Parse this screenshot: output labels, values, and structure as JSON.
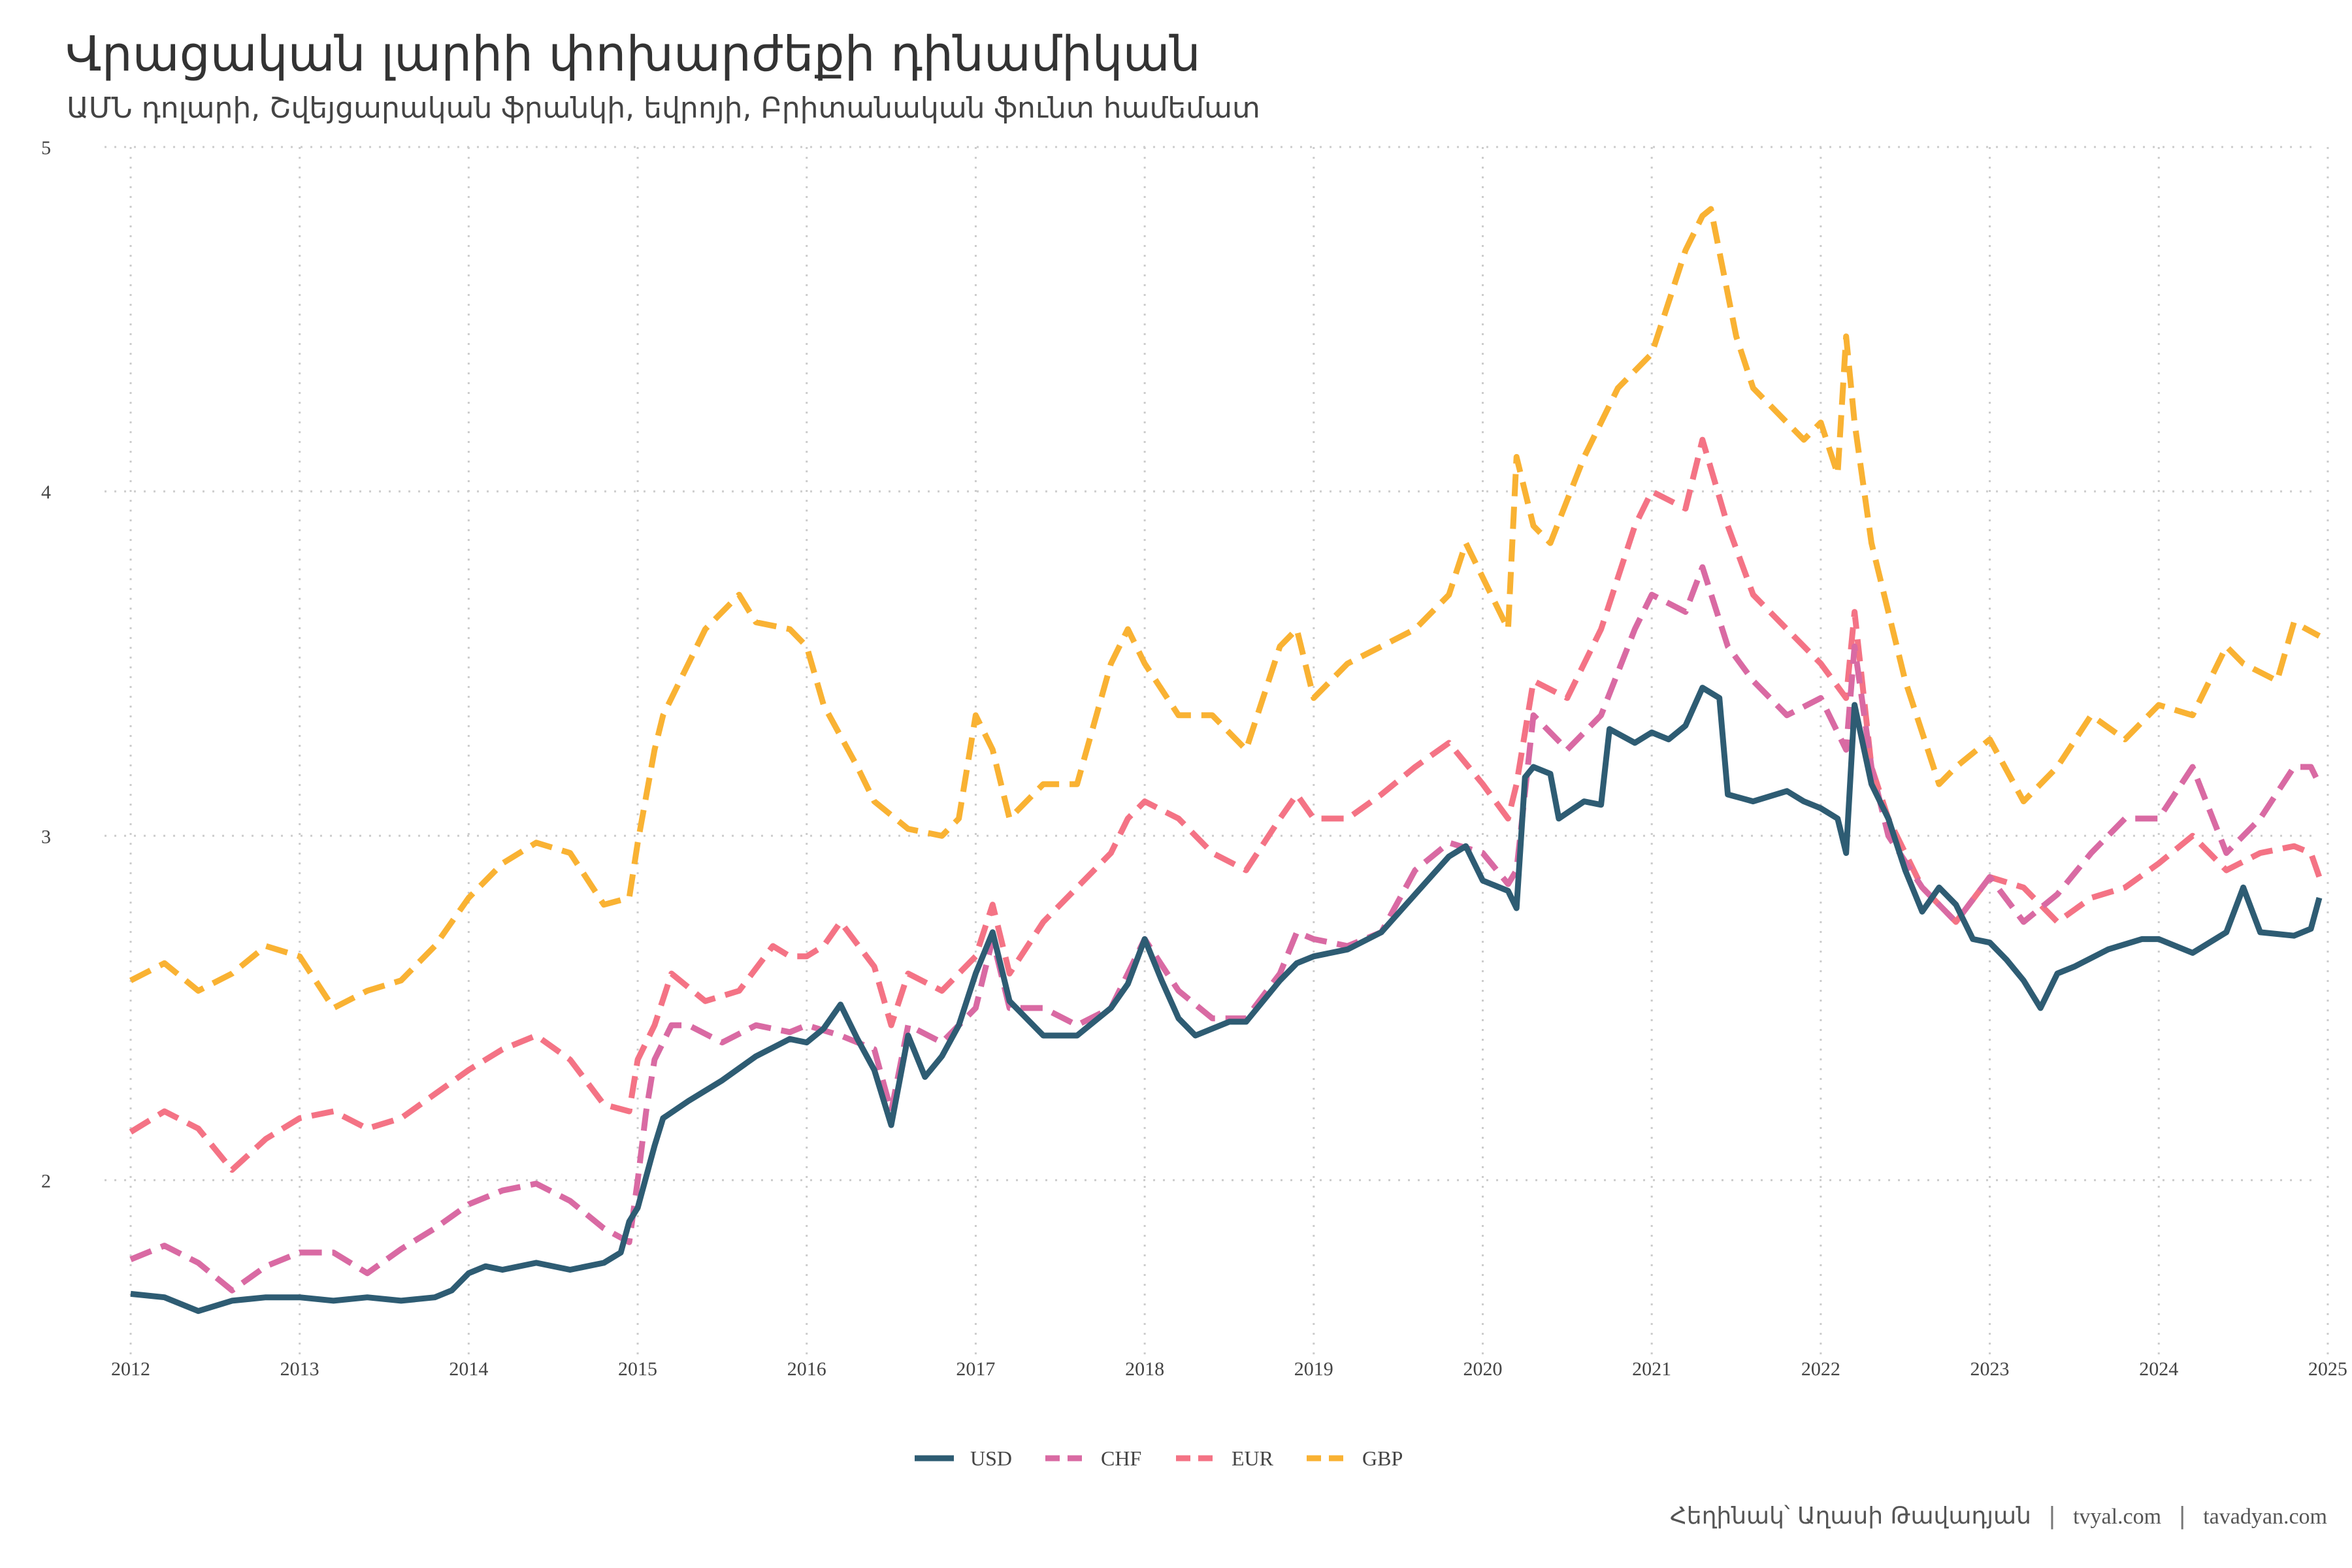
{
  "title": "Վրացական լարիի փոխարժեքի դինամիկան",
  "subtitle": "ԱՄՆ դոլարի, Շվեյցարական ֆրանկի, եվրոյի, Բրիտանական ֆունտ համեմատ",
  "caption": {
    "author": "Հեղինակ՝ Աղասի Թավադյան",
    "site1": "tvyal.com",
    "site2": "tavadyan.com",
    "separator": "|"
  },
  "chart_data": {
    "type": "line",
    "xlabel": "",
    "ylabel": "",
    "xlim": [
      2012.0,
      2024.95
    ],
    "ylim": [
      1.5,
      5.0
    ],
    "x_ticks": [
      "2012",
      "2013",
      "2014",
      "2015",
      "2016",
      "2017",
      "2018",
      "2019",
      "2020",
      "2021",
      "2022",
      "2023",
      "2024",
      "2025"
    ],
    "y_ticks": [
      "2",
      "3",
      "4",
      "5"
    ],
    "grid": true,
    "legend_position": "bottom",
    "series": [
      {
        "name": "USD",
        "color": "#2e5c73",
        "dash": "solid",
        "x": [
          2012.0,
          2012.2,
          2012.4,
          2012.6,
          2012.8,
          2013.0,
          2013.2,
          2013.4,
          2013.6,
          2013.8,
          2013.9,
          2014.0,
          2014.1,
          2014.2,
          2014.4,
          2014.6,
          2014.8,
          2014.9,
          2014.95,
          2015.0,
          2015.1,
          2015.15,
          2015.3,
          2015.5,
          2015.7,
          2015.9,
          2016.0,
          2016.1,
          2016.2,
          2016.3,
          2016.4,
          2016.5,
          2016.6,
          2016.7,
          2016.8,
          2016.9,
          2017.0,
          2017.1,
          2017.2,
          2017.4,
          2017.6,
          2017.8,
          2017.9,
          2018.0,
          2018.1,
          2018.2,
          2018.3,
          2018.5,
          2018.6,
          2018.8,
          2018.9,
          2019.0,
          2019.2,
          2019.4,
          2019.6,
          2019.8,
          2019.9,
          2020.0,
          2020.15,
          2020.2,
          2020.25,
          2020.3,
          2020.4,
          2020.45,
          2020.6,
          2020.7,
          2020.75,
          2020.9,
          2021.0,
          2021.1,
          2021.2,
          2021.3,
          2021.4,
          2021.45,
          2021.6,
          2021.8,
          2021.9,
          2022.0,
          2022.1,
          2022.15,
          2022.2,
          2022.3,
          2022.4,
          2022.5,
          2022.6,
          2022.7,
          2022.8,
          2022.9,
          2023.0,
          2023.1,
          2023.2,
          2023.3,
          2023.4,
          2023.5,
          2023.7,
          2023.9,
          2024.0,
          2024.2,
          2024.4,
          2024.5,
          2024.6,
          2024.8,
          2024.9,
          2024.95
        ],
        "values": [
          1.67,
          1.66,
          1.62,
          1.65,
          1.66,
          1.66,
          1.65,
          1.66,
          1.65,
          1.66,
          1.68,
          1.73,
          1.75,
          1.74,
          1.76,
          1.74,
          1.76,
          1.79,
          1.88,
          1.92,
          2.1,
          2.18,
          2.23,
          2.29,
          2.36,
          2.41,
          2.4,
          2.44,
          2.51,
          2.41,
          2.32,
          2.16,
          2.42,
          2.3,
          2.36,
          2.45,
          2.6,
          2.72,
          2.52,
          2.42,
          2.42,
          2.5,
          2.57,
          2.7,
          2.58,
          2.47,
          2.42,
          2.46,
          2.46,
          2.58,
          2.63,
          2.65,
          2.67,
          2.72,
          2.83,
          2.94,
          2.97,
          2.87,
          2.84,
          2.79,
          3.17,
          3.2,
          3.18,
          3.05,
          3.1,
          3.09,
          3.31,
          3.27,
          3.3,
          3.28,
          3.32,
          3.43,
          3.4,
          3.12,
          3.1,
          3.13,
          3.1,
          3.08,
          3.05,
          2.95,
          3.38,
          3.15,
          3.05,
          2.9,
          2.78,
          2.85,
          2.8,
          2.7,
          2.69,
          2.64,
          2.58,
          2.5,
          2.6,
          2.62,
          2.67,
          2.7,
          2.7,
          2.66,
          2.72,
          2.85,
          2.72,
          2.71,
          2.73,
          2.82
        ]
      },
      {
        "name": "CHF",
        "color": "#d96aa3",
        "dash": "dashed",
        "x": [
          2012.0,
          2012.2,
          2012.4,
          2012.6,
          2012.8,
          2013.0,
          2013.2,
          2013.4,
          2013.6,
          2013.8,
          2014.0,
          2014.2,
          2014.4,
          2014.6,
          2014.8,
          2014.95,
          2015.0,
          2015.05,
          2015.1,
          2015.2,
          2015.3,
          2015.5,
          2015.7,
          2015.9,
          2016.0,
          2016.2,
          2016.4,
          2016.5,
          2016.6,
          2016.8,
          2017.0,
          2017.1,
          2017.2,
          2017.4,
          2017.6,
          2017.8,
          2017.9,
          2018.0,
          2018.2,
          2018.4,
          2018.6,
          2018.8,
          2018.9,
          2019.0,
          2019.2,
          2019.4,
          2019.6,
          2019.8,
          2020.0,
          2020.15,
          2020.2,
          2020.3,
          2020.5,
          2020.7,
          2020.9,
          2021.0,
          2021.2,
          2021.3,
          2021.45,
          2021.6,
          2021.8,
          2022.0,
          2022.15,
          2022.2,
          2022.3,
          2022.4,
          2022.6,
          2022.8,
          2023.0,
          2023.2,
          2023.4,
          2023.6,
          2023.8,
          2024.0,
          2024.2,
          2024.4,
          2024.6,
          2024.8,
          2024.9,
          2024.95
        ],
        "values": [
          1.77,
          1.81,
          1.76,
          1.68,
          1.75,
          1.79,
          1.79,
          1.73,
          1.8,
          1.86,
          1.93,
          1.97,
          1.99,
          1.94,
          1.86,
          1.82,
          2.0,
          2.2,
          2.35,
          2.45,
          2.45,
          2.4,
          2.45,
          2.43,
          2.45,
          2.42,
          2.38,
          2.2,
          2.45,
          2.4,
          2.5,
          2.7,
          2.5,
          2.5,
          2.45,
          2.5,
          2.6,
          2.7,
          2.55,
          2.47,
          2.47,
          2.6,
          2.72,
          2.7,
          2.68,
          2.72,
          2.9,
          2.98,
          2.95,
          2.86,
          2.9,
          3.35,
          3.25,
          3.35,
          3.6,
          3.7,
          3.65,
          3.78,
          3.55,
          3.45,
          3.35,
          3.4,
          3.25,
          3.55,
          3.2,
          3.0,
          2.85,
          2.75,
          2.88,
          2.75,
          2.83,
          2.95,
          3.05,
          3.05,
          3.2,
          2.95,
          3.05,
          3.2,
          3.2,
          3.15
        ]
      },
      {
        "name": "EUR",
        "color": "#f47385",
        "dash": "dashed",
        "x": [
          2012.0,
          2012.2,
          2012.4,
          2012.6,
          2012.8,
          2013.0,
          2013.2,
          2013.4,
          2013.6,
          2013.8,
          2014.0,
          2014.2,
          2014.4,
          2014.6,
          2014.8,
          2014.95,
          2015.0,
          2015.1,
          2015.2,
          2015.4,
          2015.6,
          2015.8,
          2015.9,
          2016.0,
          2016.1,
          2016.2,
          2016.4,
          2016.5,
          2016.6,
          2016.8,
          2017.0,
          2017.1,
          2017.2,
          2017.4,
          2017.6,
          2017.8,
          2017.9,
          2018.0,
          2018.2,
          2018.4,
          2018.6,
          2018.8,
          2018.9,
          2019.0,
          2019.2,
          2019.4,
          2019.6,
          2019.8,
          2020.0,
          2020.15,
          2020.2,
          2020.3,
          2020.5,
          2020.7,
          2020.9,
          2021.0,
          2021.2,
          2021.3,
          2021.45,
          2021.6,
          2021.8,
          2022.0,
          2022.15,
          2022.2,
          2022.3,
          2022.4,
          2022.6,
          2022.8,
          2023.0,
          2023.2,
          2023.4,
          2023.6,
          2023.8,
          2024.0,
          2024.2,
          2024.4,
          2024.6,
          2024.8,
          2024.9,
          2024.95
        ],
        "values": [
          2.14,
          2.2,
          2.15,
          2.03,
          2.12,
          2.18,
          2.2,
          2.15,
          2.18,
          2.25,
          2.32,
          2.38,
          2.42,
          2.35,
          2.22,
          2.2,
          2.35,
          2.45,
          2.6,
          2.52,
          2.55,
          2.68,
          2.65,
          2.65,
          2.68,
          2.75,
          2.62,
          2.45,
          2.6,
          2.55,
          2.65,
          2.8,
          2.6,
          2.75,
          2.85,
          2.95,
          3.05,
          3.1,
          3.05,
          2.95,
          2.9,
          3.05,
          3.12,
          3.05,
          3.05,
          3.12,
          3.2,
          3.27,
          3.15,
          3.05,
          3.15,
          3.45,
          3.4,
          3.6,
          3.9,
          4.0,
          3.95,
          4.15,
          3.9,
          3.7,
          3.6,
          3.5,
          3.4,
          3.65,
          3.2,
          3.05,
          2.85,
          2.75,
          2.88,
          2.85,
          2.75,
          2.82,
          2.85,
          2.92,
          3.0,
          2.9,
          2.95,
          2.97,
          2.95,
          2.88
        ]
      },
      {
        "name": "GBP",
        "color": "#f9b233",
        "dash": "dashed",
        "x": [
          2012.0,
          2012.2,
          2012.4,
          2012.6,
          2012.8,
          2013.0,
          2013.2,
          2013.4,
          2013.6,
          2013.8,
          2014.0,
          2014.2,
          2014.4,
          2014.6,
          2014.8,
          2014.95,
          2015.0,
          2015.1,
          2015.15,
          2015.3,
          2015.4,
          2015.6,
          2015.7,
          2015.9,
          2016.0,
          2016.1,
          2016.3,
          2016.4,
          2016.6,
          2016.8,
          2016.9,
          2017.0,
          2017.1,
          2017.2,
          2017.4,
          2017.6,
          2017.8,
          2017.9,
          2018.0,
          2018.2,
          2018.4,
          2018.6,
          2018.8,
          2018.9,
          2019.0,
          2019.2,
          2019.4,
          2019.6,
          2019.8,
          2019.9,
          2020.0,
          2020.15,
          2020.2,
          2020.3,
          2020.4,
          2020.6,
          2020.8,
          2021.0,
          2021.1,
          2021.2,
          2021.3,
          2021.35,
          2021.5,
          2021.6,
          2021.7,
          2021.9,
          2022.0,
          2022.1,
          2022.15,
          2022.2,
          2022.3,
          2022.5,
          2022.7,
          2022.8,
          2023.0,
          2023.2,
          2023.4,
          2023.6,
          2023.8,
          2024.0,
          2024.2,
          2024.4,
          2024.5,
          2024.7,
          2024.8,
          2024.95
        ],
        "values": [
          2.58,
          2.63,
          2.55,
          2.6,
          2.68,
          2.65,
          2.5,
          2.55,
          2.58,
          2.68,
          2.82,
          2.92,
          2.98,
          2.95,
          2.8,
          2.82,
          2.98,
          3.25,
          3.35,
          3.5,
          3.6,
          3.7,
          3.62,
          3.6,
          3.55,
          3.38,
          3.2,
          3.1,
          3.02,
          3.0,
          3.05,
          3.35,
          3.25,
          3.05,
          3.15,
          3.15,
          3.5,
          3.6,
          3.5,
          3.35,
          3.35,
          3.25,
          3.55,
          3.6,
          3.4,
          3.5,
          3.55,
          3.6,
          3.7,
          3.85,
          3.75,
          3.6,
          4.1,
          3.9,
          3.85,
          4.1,
          4.3,
          4.4,
          4.55,
          4.7,
          4.8,
          4.82,
          4.45,
          4.3,
          4.25,
          4.15,
          4.2,
          4.05,
          4.45,
          4.2,
          3.85,
          3.45,
          3.15,
          3.2,
          3.28,
          3.1,
          3.2,
          3.35,
          3.28,
          3.38,
          3.35,
          3.55,
          3.5,
          3.45,
          3.62,
          3.58
        ]
      }
    ]
  }
}
